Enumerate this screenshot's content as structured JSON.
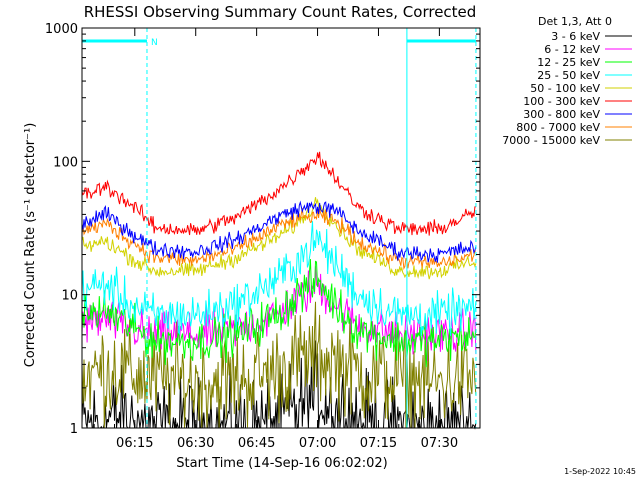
{
  "chart_data": {
    "type": "line",
    "title": "RHESSI Observing Summary Count Rates, Corrected",
    "xlabel": "Start Time (14-Sep-16 06:02:02)",
    "ylabel": "Corrected Count Rate (s⁻¹ detector⁻¹)",
    "y_scale": "log",
    "ylim": [
      1,
      1000
    ],
    "xlim": [
      "06:02",
      "07:40"
    ],
    "x_ticks": [
      "06:15",
      "06:30",
      "06:45",
      "07:00",
      "07:15",
      "07:30"
    ],
    "y_ticks": [
      "1",
      "10",
      "100",
      "1000"
    ],
    "legend_header": "Det 1,3, Att 0",
    "legend_position": "top-right, outside plot",
    "annotation_n": "N",
    "night_intervals": [
      [
        "06:02",
        "06:18"
      ],
      [
        "07:22",
        "07:39"
      ]
    ],
    "timestamp": "1-Sep-2022 10:45",
    "series": [
      {
        "name": "3 - 6 keV",
        "color": "#000000",
        "x": [
          "06:02",
          "06:10",
          "06:20",
          "06:30",
          "06:40",
          "06:50",
          "06:55",
          "07:00",
          "07:05",
          "07:10",
          "07:20",
          "07:30",
          "07:39"
        ],
        "values": [
          1.0,
          1.2,
          1.0,
          1.0,
          1.0,
          1.1,
          1.4,
          1.8,
          1.4,
          1.1,
          1.0,
          1.0,
          1.0
        ]
      },
      {
        "name": "6 - 12 keV",
        "color": "#ff00ff",
        "x": [
          "06:02",
          "06:08",
          "06:15",
          "06:20",
          "06:30",
          "06:40",
          "06:50",
          "06:55",
          "07:00",
          "07:05",
          "07:10",
          "07:20",
          "07:30",
          "07:39"
        ],
        "values": [
          6,
          6.5,
          5.5,
          5,
          5,
          5.5,
          7,
          9,
          12,
          8,
          6,
          5,
          5,
          5.5
        ]
      },
      {
        "name": "12 - 25 keV",
        "color": "#00ff00",
        "x": [
          "06:02",
          "06:08",
          "06:15",
          "06:20",
          "06:30",
          "06:40",
          "06:50",
          "06:55",
          "07:00",
          "07:05",
          "07:10",
          "07:20",
          "07:30",
          "07:39"
        ],
        "values": [
          7,
          7.5,
          5.5,
          4.5,
          4.5,
          5,
          7,
          10,
          13,
          8,
          5.5,
          4.5,
          4.5,
          5
        ]
      },
      {
        "name": "25 - 50 keV",
        "color": "#00ffff",
        "x": [
          "06:02",
          "06:08",
          "06:15",
          "06:20",
          "06:30",
          "06:40",
          "06:50",
          "06:55",
          "07:00",
          "07:05",
          "07:10",
          "07:20",
          "07:30",
          "07:39"
        ],
        "values": [
          11,
          12,
          8,
          7,
          7,
          8.5,
          13,
          18,
          26,
          16,
          10,
          7,
          7,
          8
        ]
      },
      {
        "name": "50 - 100 keV",
        "color": "#d2d200",
        "x": [
          "06:02",
          "06:08",
          "06:15",
          "06:20",
          "06:30",
          "06:40",
          "06:50",
          "06:55",
          "07:00",
          "07:05",
          "07:10",
          "07:20",
          "07:30",
          "07:39"
        ],
        "values": [
          23,
          25,
          18,
          15,
          15,
          19,
          27,
          34,
          50,
          32,
          22,
          15,
          15,
          18
        ]
      },
      {
        "name": "100 - 300 keV",
        "color": "#ff0000",
        "x": [
          "06:02",
          "06:08",
          "06:15",
          "06:20",
          "06:30",
          "06:40",
          "06:50",
          "06:55",
          "07:00",
          "07:05",
          "07:10",
          "07:20",
          "07:30",
          "07:39"
        ],
        "values": [
          55,
          65,
          45,
          32,
          30,
          38,
          60,
          80,
          110,
          72,
          45,
          31,
          31,
          42
        ]
      },
      {
        "name": "300 - 800 keV",
        "color": "#0000ff",
        "x": [
          "06:02",
          "06:08",
          "06:15",
          "06:20",
          "06:30",
          "06:40",
          "06:50",
          "06:55",
          "07:00",
          "07:05",
          "07:10",
          "07:20",
          "07:30",
          "07:39"
        ],
        "values": [
          34,
          40,
          28,
          22,
          21,
          26,
          38,
          44,
          46,
          42,
          30,
          21,
          20,
          23
        ]
      },
      {
        "name": "800 - 7000 keV",
        "color": "#ff8000",
        "x": [
          "06:02",
          "06:08",
          "06:15",
          "06:20",
          "06:30",
          "06:40",
          "06:50",
          "06:55",
          "07:00",
          "07:05",
          "07:10",
          "07:20",
          "07:30",
          "07:39"
        ],
        "values": [
          30,
          34,
          24,
          19,
          18,
          22,
          32,
          37,
          39,
          35,
          25,
          18,
          17,
          20
        ]
      },
      {
        "name": "7000 - 15000 keV",
        "color": "#808000",
        "x": [
          "06:02",
          "06:10",
          "06:20",
          "06:30",
          "06:40",
          "06:50",
          "06:55",
          "07:00",
          "07:05",
          "07:10",
          "07:20",
          "07:30",
          "07:39"
        ],
        "values": [
          2.5,
          2.8,
          2.3,
          2.2,
          2.3,
          2.6,
          3.2,
          3.5,
          3.1,
          2.6,
          2.3,
          2.2,
          2.4
        ]
      }
    ]
  }
}
